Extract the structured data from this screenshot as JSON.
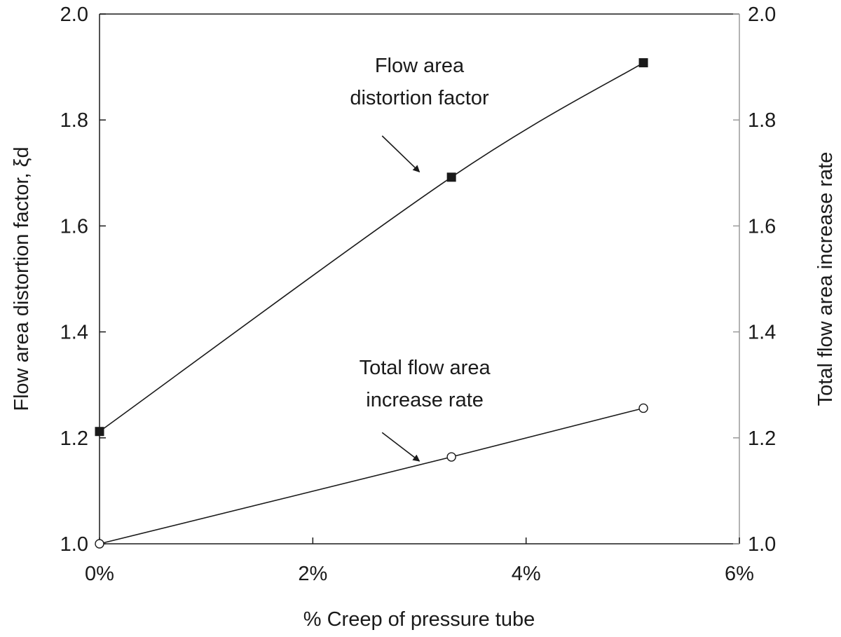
{
  "chart_data": {
    "type": "line",
    "title": "",
    "xlabel": "% Creep of pressure tube",
    "ylabel_left": "Flow area distortion factor, ξd",
    "ylabel_right": "Total flow area increase rate",
    "xlim": [
      0,
      6
    ],
    "ylim": [
      1.0,
      2.0
    ],
    "ylim_right": [
      1.0,
      2.0
    ],
    "x_ticks": [
      0,
      2,
      4,
      6
    ],
    "x_tick_labels": [
      "0%",
      "2%",
      "4%",
      "6%"
    ],
    "y_ticks": [
      1.0,
      1.2,
      1.4,
      1.6,
      1.8,
      2.0
    ],
    "y_tick_labels": [
      "1.0",
      "1.2",
      "1.4",
      "1.6",
      "1.8",
      "2.0"
    ],
    "y_right_ticks": [
      1.0,
      1.2,
      1.4,
      1.6,
      1.8,
      2.0
    ],
    "y_right_tick_labels": [
      "1.0",
      "1.2",
      "1.4",
      "1.6",
      "1.8",
      "2.0"
    ],
    "grid": false,
    "series": [
      {
        "name": "Flow area distortion factor",
        "axis": "left",
        "marker": "filled-square",
        "x": [
          0,
          3.3,
          5.1
        ],
        "y": [
          1.212,
          1.692,
          1.908
        ]
      },
      {
        "name": "Total flow area increase rate",
        "axis": "right",
        "marker": "open-circle",
        "x": [
          0,
          3.3,
          5.1
        ],
        "y": [
          1.0,
          1.164,
          1.256
        ]
      }
    ],
    "annotations": [
      {
        "lines": [
          "Flow area",
          "distortion factor"
        ],
        "series_index": 0,
        "arrow_from": [
          2.65,
          1.77
        ],
        "arrow_to": [
          3.0,
          1.702
        ],
        "text_at": [
          3.0,
          1.89
        ]
      },
      {
        "lines": [
          "Total flow area",
          "increase rate"
        ],
        "series_index": 1,
        "arrow_from": [
          2.65,
          1.21
        ],
        "arrow_to": [
          3.0,
          1.156
        ],
        "text_at": [
          3.05,
          1.32
        ]
      }
    ],
    "colors": {
      "line": "#1a1a1a",
      "frame": "#1a1a1a",
      "right_axis": "#9a9a9a"
    }
  }
}
